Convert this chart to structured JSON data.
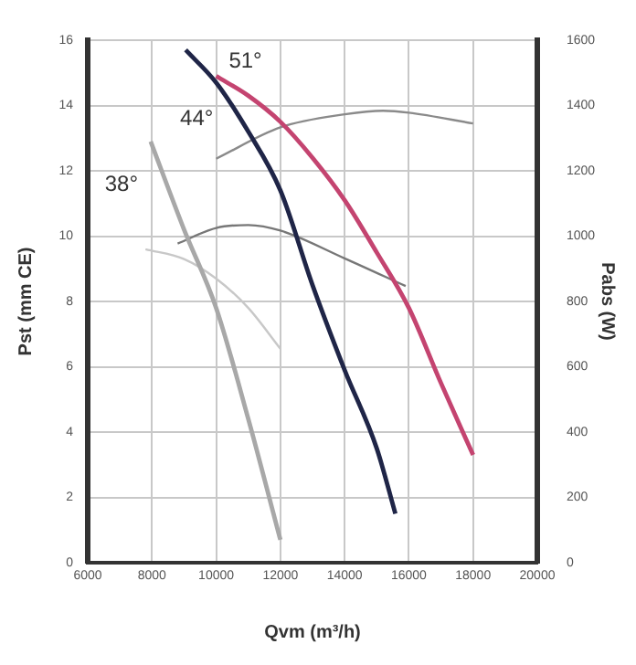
{
  "chart_data": {
    "type": "line",
    "xlabel": "Qvm (m³/h)",
    "ylabel": "Pst (mm CE)",
    "y2label": "Pabs (W)",
    "xlim": [
      6000,
      20000
    ],
    "xticks": [
      6000,
      8000,
      10000,
      12000,
      14000,
      16000,
      18000,
      20000
    ],
    "ylim": [
      0,
      16
    ],
    "yticks": [
      0,
      2,
      4,
      6,
      8,
      10,
      12,
      14,
      16
    ],
    "y2lim": [
      0,
      1600
    ],
    "y2ticks": [
      0,
      200,
      400,
      600,
      800,
      1000,
      1200,
      1400,
      1600
    ],
    "grid": true,
    "legend": false,
    "marker": "none",
    "line_style": "solid",
    "series": [
      {
        "name": "38°",
        "color": "#a8a8a8",
        "x": [
          7960,
          9000,
          10000,
          11000,
          12000
        ],
        "values": [
          12.9,
          10.2,
          7.8,
          4.4,
          0.7
        ]
      },
      {
        "name": "44°",
        "color": "#1f2547",
        "x": [
          9050,
          10000,
          11000,
          12000,
          13000,
          14000,
          15000,
          15580
        ],
        "values": [
          15.7,
          14.7,
          13.2,
          11.4,
          8.5,
          5.9,
          3.5,
          1.5
        ]
      },
      {
        "name": "51°",
        "color": "#c44470",
        "x": [
          10000,
          11000,
          12000,
          13000,
          14000,
          15000,
          16000,
          17000,
          18000
        ],
        "values": [
          14.9,
          14.3,
          13.5,
          12.4,
          11.1,
          9.5,
          7.8,
          5.5,
          3.3
        ]
      },
      {
        "color": "#c8c8c8",
        "axis": "y2",
        "x": [
          7800,
          9000,
          10000,
          11000,
          12000
        ],
        "values": [
          960,
          930,
          870,
          780,
          655
        ]
      },
      {
        "color": "#777777",
        "axis": "y2",
        "x": [
          8800,
          10000,
          11000,
          12000,
          14000,
          15900
        ],
        "values": [
          977,
          1025,
          1034,
          1017,
          932,
          847
        ]
      },
      {
        "color": "#8a8a8a",
        "axis": "y2",
        "x": [
          10000,
          12000,
          14000,
          15200,
          16000,
          18000
        ],
        "values": [
          1237,
          1333,
          1373,
          1384,
          1378,
          1345
        ]
      }
    ]
  }
}
